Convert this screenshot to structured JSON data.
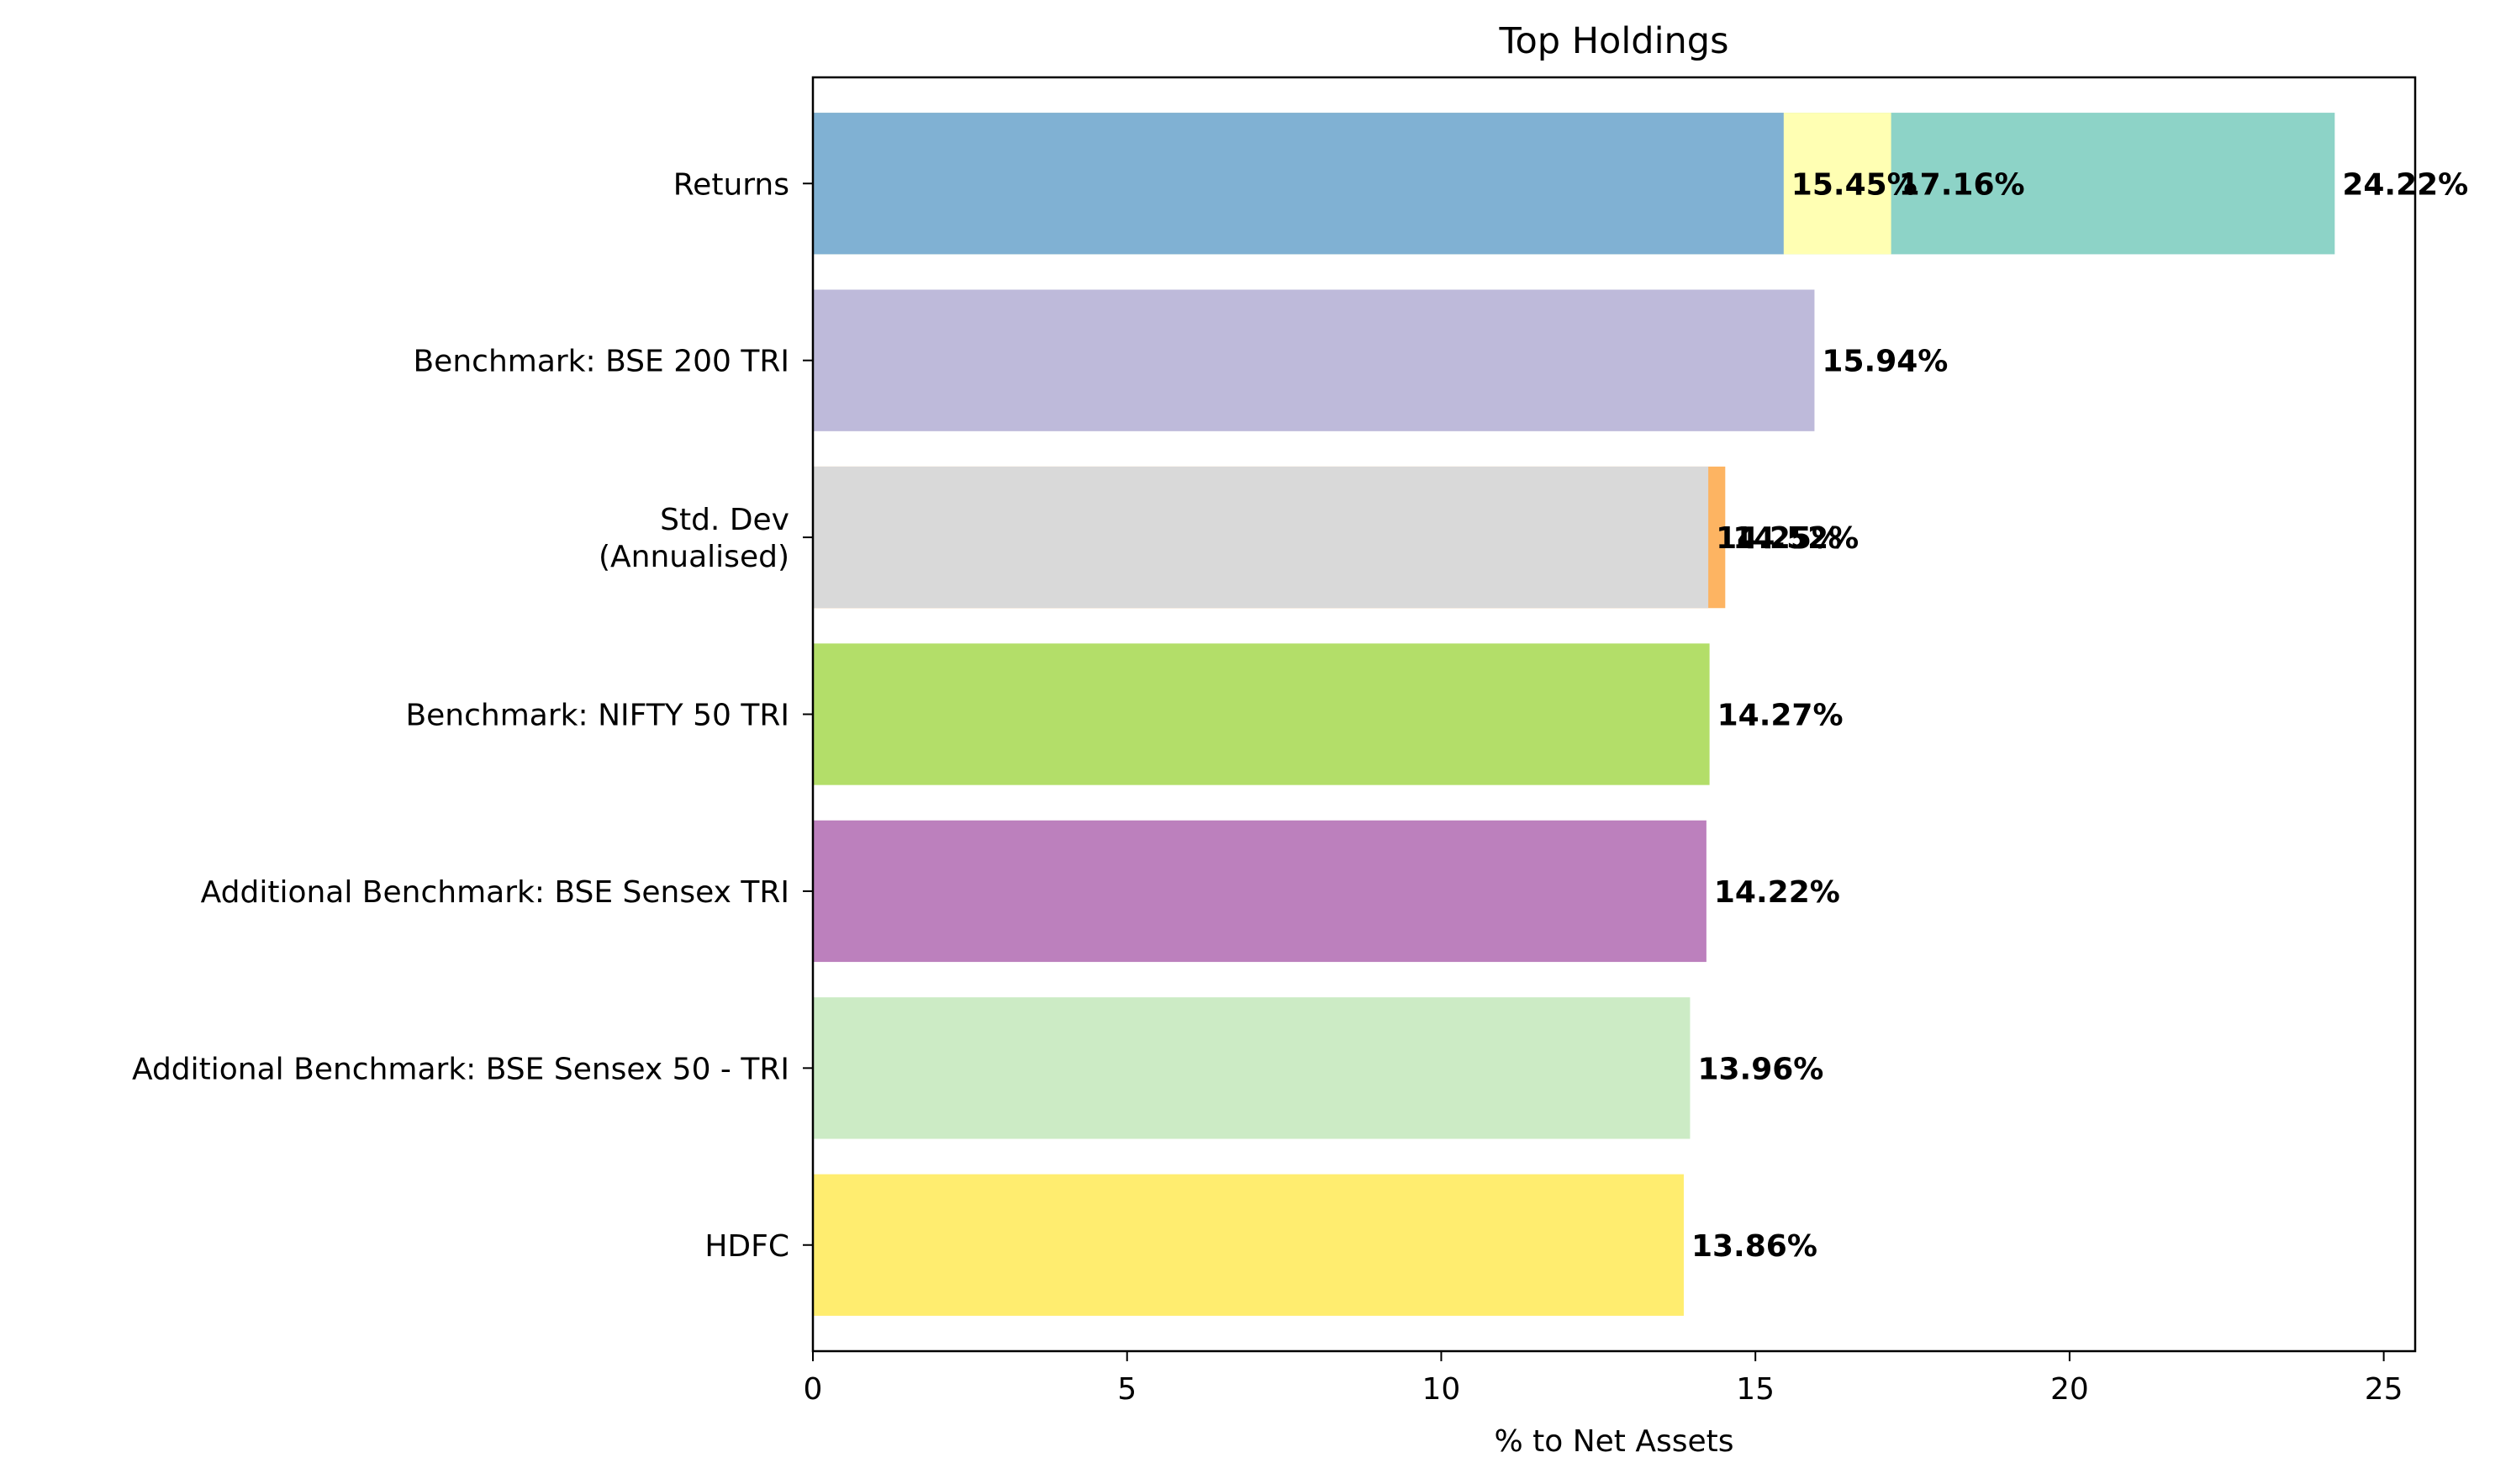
{
  "chart_data": {
    "type": "bar",
    "orientation": "horizontal",
    "title": "Top Holdings",
    "xlabel": "% to Net Assets",
    "ylabel": "",
    "xlim": [
      0,
      25.5
    ],
    "xticks": [
      "0",
      "5",
      "10",
      "15",
      "20",
      "25"
    ],
    "xtick_values": [
      0,
      5,
      10,
      15,
      20,
      25
    ],
    "grid": false,
    "categories": [
      "Returns",
      "Benchmark: BSE 200 TRI",
      "Std. Dev\n(Annualised)",
      "Benchmark: NIFTY 50 TRI",
      "Additional Benchmark: BSE Sensex TRI",
      "Additional Benchmark: BSE Sensex 50 - TRI",
      "HDFC"
    ],
    "bars": [
      {
        "category": "Returns",
        "value": 24.22,
        "label": "24.22%",
        "color": "#8dd3c7"
      },
      {
        "category": "Returns",
        "value": 17.16,
        "label": "17.16%",
        "color": "#ffffb3"
      },
      {
        "category": "Returns",
        "value": 15.45,
        "label": "15.45%",
        "color": "#80b1d3"
      },
      {
        "category": "Benchmark: BSE 200 TRI",
        "value": 15.94,
        "label": "15.94%",
        "color": "#bebada"
      },
      {
        "category": "Std. Dev\n(Annualised)",
        "value": 14.52,
        "label": "14.52%",
        "color": "#fdb462"
      },
      {
        "category": "Std. Dev\n(Annualised)",
        "value": 14.25,
        "label": "14.25%",
        "color": "#d9d9d9"
      },
      {
        "category": "Benchmark: NIFTY 50 TRI",
        "value": 14.27,
        "label": "14.27%",
        "color": "#b3de69"
      },
      {
        "category": "Additional Benchmark: BSE Sensex TRI",
        "value": 14.22,
        "label": "14.22%",
        "color": "#bc80bd"
      },
      {
        "category": "Additional Benchmark: BSE Sensex 50 - TRI",
        "value": 13.96,
        "label": "13.96%",
        "color": "#ccebc5"
      },
      {
        "category": "HDFC",
        "value": 13.86,
        "label": "13.86%",
        "color": "#ffed6f"
      }
    ]
  }
}
